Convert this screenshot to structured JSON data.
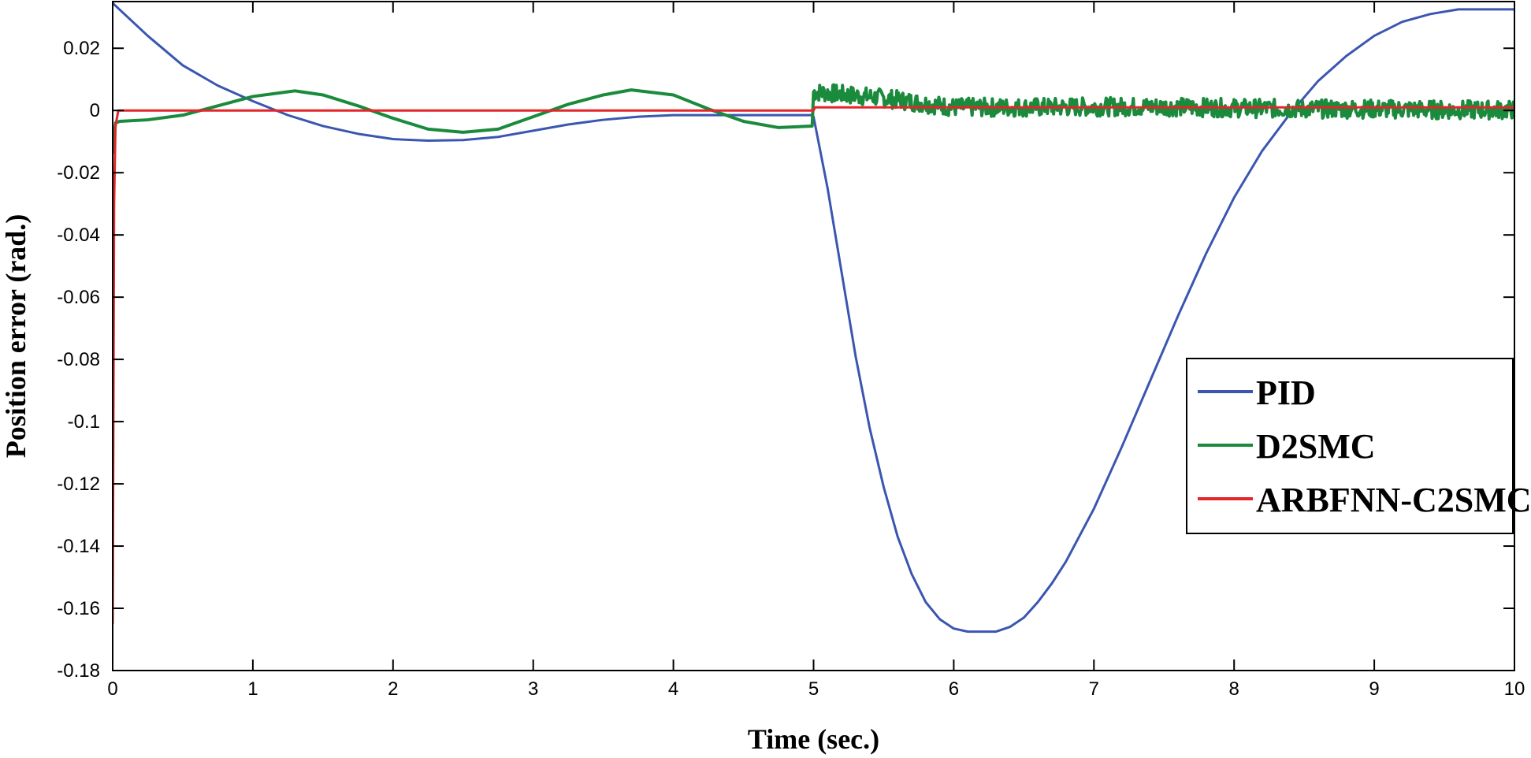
{
  "chart_data": {
    "type": "line",
    "title": "",
    "xlabel": "Time (sec.)",
    "ylabel": "Position error (rad.)",
    "xlim": [
      0,
      10
    ],
    "ylim": [
      -0.18,
      0.035
    ],
    "xticks": [
      0,
      1,
      2,
      3,
      4,
      5,
      6,
      7,
      8,
      9,
      10
    ],
    "xtick_labels": [
      "0",
      "1",
      "2",
      "3",
      "4",
      "5",
      "6",
      "7",
      "8",
      "9",
      "10"
    ],
    "yticks": [
      0.02,
      0,
      -0.02,
      -0.04,
      -0.06,
      -0.08,
      -0.1,
      -0.12,
      -0.14,
      -0.16,
      -0.18
    ],
    "ytick_labels": [
      "0.02",
      "0",
      "-0.02",
      "-0.04",
      "-0.06",
      "-0.08",
      "-0.1",
      "-0.12",
      "-0.14",
      "-0.16",
      "-0.18"
    ],
    "grid": false,
    "legend_position": "right",
    "series": [
      {
        "name": "PID",
        "color": "#3a56b0",
        "x": [
          0,
          0.25,
          0.5,
          0.75,
          1.0,
          1.25,
          1.5,
          1.75,
          2.0,
          2.25,
          2.5,
          2.75,
          3.0,
          3.25,
          3.5,
          3.75,
          4.0,
          4.25,
          4.5,
          4.75,
          4.99,
          5.0,
          5.1,
          5.2,
          5.3,
          5.4,
          5.5,
          5.6,
          5.7,
          5.8,
          5.9,
          6.0,
          6.1,
          6.2,
          6.3,
          6.4,
          6.5,
          6.6,
          6.7,
          6.8,
          7.0,
          7.2,
          7.4,
          7.6,
          7.8,
          8.0,
          8.2,
          8.4,
          8.6,
          8.8,
          9.0,
          9.2,
          9.4,
          9.6,
          9.8,
          10.0
        ],
        "y": [
          0.0345,
          0.024,
          0.0145,
          0.008,
          0.003,
          -0.0015,
          -0.005,
          -0.0075,
          -0.0092,
          -0.0097,
          -0.0095,
          -0.0085,
          -0.0065,
          -0.0045,
          -0.003,
          -0.002,
          -0.0015,
          -0.0015,
          -0.0015,
          -0.0015,
          -0.0015,
          -0.002,
          -0.025,
          -0.052,
          -0.079,
          -0.102,
          -0.121,
          -0.137,
          -0.149,
          -0.158,
          -0.1635,
          -0.1665,
          -0.1675,
          -0.1675,
          -0.1675,
          -0.166,
          -0.163,
          -0.158,
          -0.152,
          -0.145,
          -0.128,
          -0.108,
          -0.087,
          -0.066,
          -0.046,
          -0.028,
          -0.013,
          -0.001,
          0.0095,
          0.0175,
          0.024,
          0.0285,
          0.031,
          0.0325,
          0.0325,
          0.0325
        ]
      },
      {
        "name": "D2SMC",
        "color": "#1a8a3c",
        "x": [
          0,
          0.02,
          0.05,
          0.25,
          0.5,
          0.75,
          1.0,
          1.25,
          1.3,
          1.5,
          1.75,
          2.0,
          2.25,
          2.5,
          2.75,
          3.0,
          3.25,
          3.5,
          3.7,
          4.0,
          4.25,
          4.5,
          4.75,
          4.99,
          5.0,
          5.5,
          6.0,
          6.5,
          7.0,
          7.5,
          8.0,
          8.5,
          9.0,
          9.5,
          10.0
        ],
        "y": [
          -0.014,
          -0.004,
          -0.0035,
          -0.003,
          -0.0015,
          0.0015,
          0.0045,
          0.006,
          0.0063,
          0.005,
          0.0015,
          -0.0025,
          -0.006,
          -0.007,
          -0.006,
          -0.002,
          0.002,
          0.005,
          0.0066,
          0.005,
          0.0005,
          -0.0035,
          -0.0055,
          -0.005,
          0.006,
          0.004,
          0.001,
          0.001,
          0.0012,
          0.0012,
          0.0008,
          0.0005,
          0.0005,
          0.0002,
          0.0002
        ],
        "noise_from_x": 5.0,
        "noise_amplitude": 0.003
      },
      {
        "name": "ARBFNN-C2SMC",
        "color": "#e3262b",
        "x": [
          0,
          0.005,
          0.01,
          0.02,
          0.04,
          5.0,
          5.01,
          10.0
        ],
        "y": [
          -0.165,
          -0.1,
          -0.03,
          -0.005,
          0.0,
          0.0,
          0.001,
          0.001
        ]
      }
    ]
  }
}
